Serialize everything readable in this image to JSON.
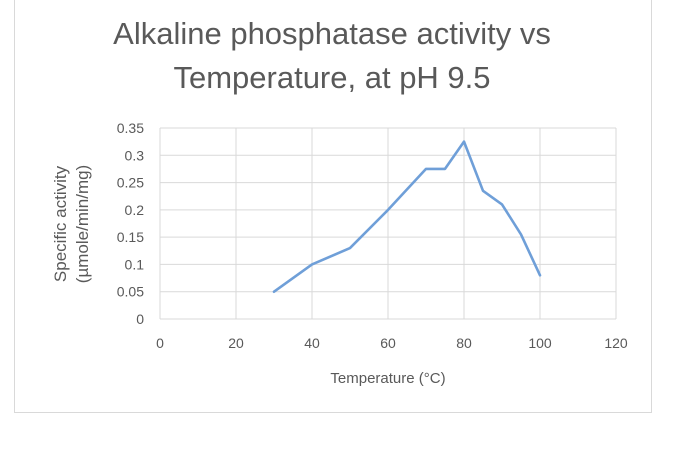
{
  "chart_data": {
    "type": "line",
    "title_lines": [
      "Alkaline phosphatase activity vs",
      "Temperature, at pH 9.5"
    ],
    "xlabel": "Temperature  (°C)",
    "ylabel_lines": [
      "Specific activity",
      "(µmole/min/mg)"
    ],
    "xlim": [
      0,
      120
    ],
    "ylim": [
      0,
      0.35
    ],
    "x_ticks": [
      "0",
      "20",
      "40",
      "60",
      "80",
      "100",
      "120"
    ],
    "y_ticks": [
      "0",
      "0.05",
      "0.1",
      "0.15",
      "0.2",
      "0.25",
      "0.3",
      "0.35"
    ],
    "grid": true,
    "legend": "none",
    "series": [
      {
        "color": "#6f9fd8",
        "x": [
          30,
          40,
          50,
          60,
          70,
          75,
          80,
          85,
          90,
          95,
          100
        ],
        "y": [
          0.05,
          0.1,
          0.13,
          0.2,
          0.275,
          0.275,
          0.325,
          0.235,
          0.21,
          0.155,
          0.08
        ]
      }
    ]
  }
}
